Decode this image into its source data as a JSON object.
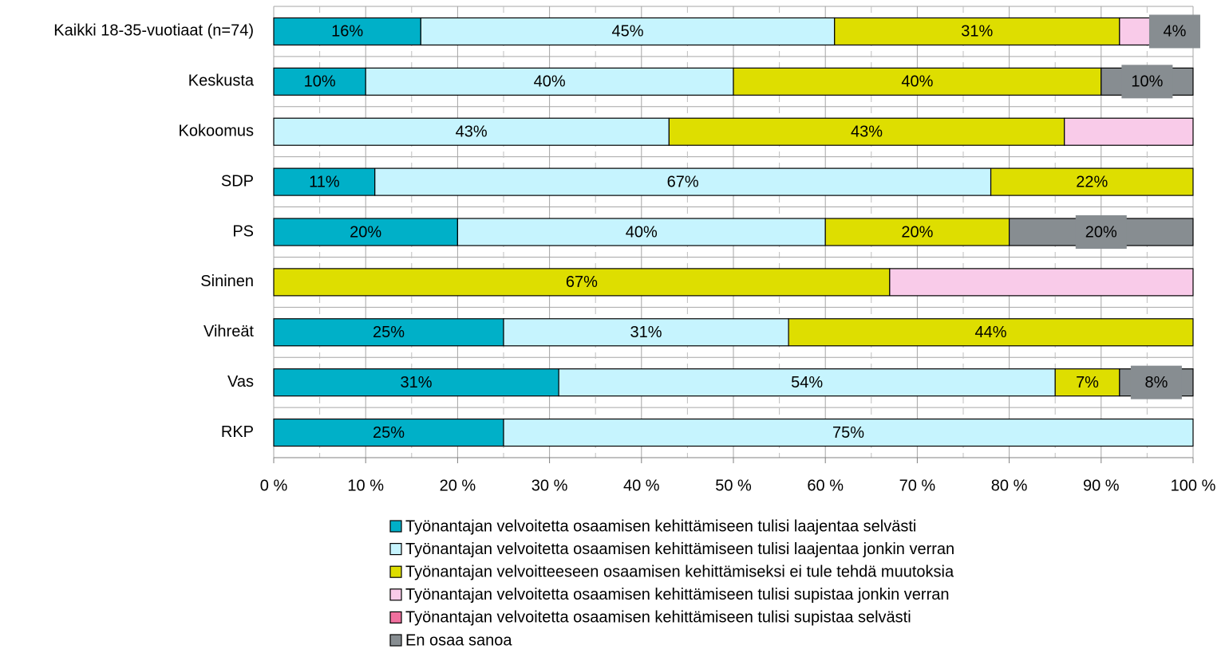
{
  "chart_data": {
    "type": "stacked_barh",
    "categories": [
      "Kaikki 18-35-vuotiaat (n=74)",
      "Keskusta",
      "Kokoomus",
      "SDP",
      "PS",
      "Sininen",
      "Vihreät",
      "Vas",
      "RKP"
    ],
    "series": [
      {
        "name": "Työnantajan velvoitetta osaamisen kehittämiseen tulisi laajentaa selvästi",
        "color": "#00b0c8",
        "values": [
          16,
          10,
          0,
          11,
          20,
          0,
          25,
          31,
          25
        ],
        "value_labels": [
          "16%",
          "10%",
          null,
          "11%",
          "20%",
          null,
          "25%",
          "31%",
          "25%"
        ]
      },
      {
        "name": "Työnantajan velvoitetta osaamisen kehittämiseen tulisi laajentaa jonkin verran",
        "color": "#c6f4fe",
        "values": [
          45,
          40,
          43,
          67,
          40,
          0,
          31,
          54,
          75
        ],
        "value_labels": [
          "45%",
          "40%",
          "43%",
          "67%",
          "40%",
          null,
          "31%",
          "54%",
          "75%"
        ]
      },
      {
        "name": "Työnantajan velvoitteeseen osaamisen kehittämiseksi ei tule tehdä muutoksia",
        "color": "#dede00",
        "values": [
          31,
          40,
          43,
          22,
          20,
          67,
          44,
          7,
          0
        ],
        "value_labels": [
          "31%",
          "40%",
          "43%",
          "22%",
          "20%",
          "67%",
          "44%",
          "7%",
          null
        ]
      },
      {
        "name": "Työnantajan velvoitetta osaamisen kehittämiseen tulisi supistaa jonkin verran",
        "color": "#f9cbe9",
        "values": [
          4,
          0,
          14,
          0,
          0,
          33,
          0,
          0,
          0
        ],
        "value_labels": [
          null,
          null,
          null,
          null,
          null,
          null,
          null,
          null,
          null
        ]
      },
      {
        "name": "Työnantajan velvoitetta osaamisen kehittämiseen tulisi supistaa selvästi",
        "color": "#f0709e",
        "values": [
          0,
          0,
          0,
          0,
          0,
          0,
          0,
          0,
          0
        ],
        "value_labels": [
          null,
          null,
          null,
          null,
          null,
          null,
          null,
          null,
          null
        ]
      },
      {
        "name": "En osaa sanoa",
        "color": "#878d91",
        "values": [
          4,
          10,
          0,
          0,
          20,
          0,
          0,
          8,
          0
        ],
        "value_labels": [
          "4%",
          "10%",
          null,
          null,
          "20%",
          null,
          null,
          "8%",
          null
        ]
      }
    ],
    "xlim": [
      0,
      100
    ],
    "xticks": [
      {
        "value": 0,
        "label": "0 %"
      },
      {
        "value": 10,
        "label": "10 %"
      },
      {
        "value": 20,
        "label": "20 %"
      },
      {
        "value": 30,
        "label": "30 %"
      },
      {
        "value": 40,
        "label": "40 %"
      },
      {
        "value": 50,
        "label": "50 %"
      },
      {
        "value": 60,
        "label": "60 %"
      },
      {
        "value": 70,
        "label": "70 %"
      },
      {
        "value": 80,
        "label": "80 %"
      },
      {
        "value": 90,
        "label": "90 %"
      },
      {
        "value": 100,
        "label": "100 %"
      }
    ],
    "grid": true,
    "legend": "bottom"
  }
}
